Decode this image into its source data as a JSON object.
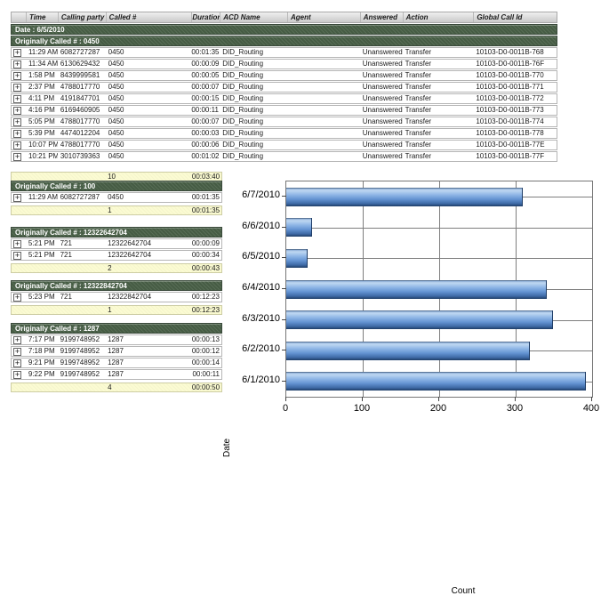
{
  "table": {
    "columns": [
      "Time",
      "Calling party #",
      "Called #",
      "Duration",
      "ACD Name",
      "Agent",
      "Answered",
      "Action",
      "Global Call Id"
    ],
    "date_header": "Date : 6/5/2010",
    "group_header": "Originally Called # : 0450",
    "rows": [
      [
        "11:29 AM",
        "6082727287",
        "0450",
        "00:01:35",
        "DID_Routing",
        "",
        "Unanswered",
        "Transfer",
        "10103-D0-0011B-768"
      ],
      [
        "11:34 AM",
        "6130629432",
        "0450",
        "00:00:09",
        "DID_Routing",
        "",
        "Unanswered",
        "Transfer",
        "10103-D0-0011B-76F"
      ],
      [
        "1:58 PM",
        "8439999581",
        "0450",
        "00:00:05",
        "DID_Routing",
        "",
        "Unanswered",
        "Transfer",
        "10103-D0-0011B-770"
      ],
      [
        "2:37 PM",
        "4788017770",
        "0450",
        "00:00:07",
        "DID_Routing",
        "",
        "Unanswered",
        "Transfer",
        "10103-D0-0011B-771"
      ],
      [
        "4:11 PM",
        "4191847701",
        "0450",
        "00:00:15",
        "DID_Routing",
        "",
        "Unanswered",
        "Transfer",
        "10103-D0-0011B-772"
      ],
      [
        "4:16 PM",
        "6169460905",
        "0450",
        "00:00:11",
        "DID_Routing",
        "",
        "Unanswered",
        "Transfer",
        "10103-D0-0011B-773"
      ],
      [
        "5:05 PM",
        "4788017770",
        "0450",
        "00:00:07",
        "DID_Routing",
        "",
        "Unanswered",
        "Transfer",
        "10103-D0-0011B-774"
      ],
      [
        "5:39 PM",
        "4474012204",
        "0450",
        "00:00:03",
        "DID_Routing",
        "",
        "Unanswered",
        "Transfer",
        "10103-D0-0011B-778"
      ],
      [
        "10:07 PM",
        "4788017770",
        "0450",
        "00:00:06",
        "DID_Routing",
        "",
        "Unanswered",
        "Transfer",
        "10103-D0-0011B-77E"
      ],
      [
        "10:21 PM",
        "3010739363",
        "0450",
        "00:01:02",
        "DID_Routing",
        "",
        "Unanswered",
        "Transfer",
        "10103-D0-0011B-77F"
      ]
    ],
    "summary": {
      "count": "10",
      "duration": "00:03:40"
    }
  },
  "sections": [
    {
      "header": "Originally Called # : 100",
      "rows": [
        [
          "11:29 AM",
          "6082727287",
          "0450",
          "00:01:35"
        ]
      ],
      "summary": {
        "count": "1",
        "duration": "00:01:35"
      }
    },
    {
      "header": "Originally Called # : 12322642704",
      "rows": [
        [
          "5:21 PM",
          "721",
          "12322642704",
          "00:00:09"
        ],
        [
          "5:21 PM",
          "721",
          "12322642704",
          "00:00:34"
        ]
      ],
      "summary": {
        "count": "2",
        "duration": "00:00:43"
      }
    },
    {
      "header": "Originally Called # : 12322842704",
      "rows": [
        [
          "5:23 PM",
          "721",
          "12322842704",
          "00:12:23"
        ]
      ],
      "summary": {
        "count": "1",
        "duration": "00:12:23"
      }
    },
    {
      "header": "Originally Called # : 1287",
      "rows": [
        [
          "7:17 PM",
          "9199748952",
          "1287",
          "00:00:13"
        ],
        [
          "7:18 PM",
          "9199748952",
          "1287",
          "00:00:12"
        ],
        [
          "9:21 PM",
          "9199748952",
          "1287",
          "00:00:14"
        ],
        [
          "9:22 PM",
          "9199748952",
          "1287",
          "00:00:11"
        ]
      ],
      "summary": {
        "count": "4",
        "duration": "00:00:50"
      }
    }
  ],
  "icons": {
    "expand": "+"
  },
  "chart_data": {
    "type": "bar",
    "orientation": "horizontal",
    "title": "",
    "categories": [
      "6/7/2010",
      "6/6/2010",
      "6/5/2010",
      "6/4/2010",
      "6/3/2010",
      "6/2/2010",
      "6/1/2010"
    ],
    "values": [
      308,
      33,
      27,
      340,
      348,
      317,
      391
    ],
    "xlabel": "Count",
    "ylabel": "Date",
    "xlim": [
      0,
      400
    ],
    "xticks": [
      0,
      100,
      200,
      300,
      400
    ],
    "grid": true,
    "legend": false,
    "bar_color": "#6493d2"
  },
  "colors": {
    "group_header_bg": "#4a6148",
    "summary_bg": "#fbfbd2",
    "header_bg": "#d6d6d6",
    "grid_line": "#7e7e7e"
  }
}
